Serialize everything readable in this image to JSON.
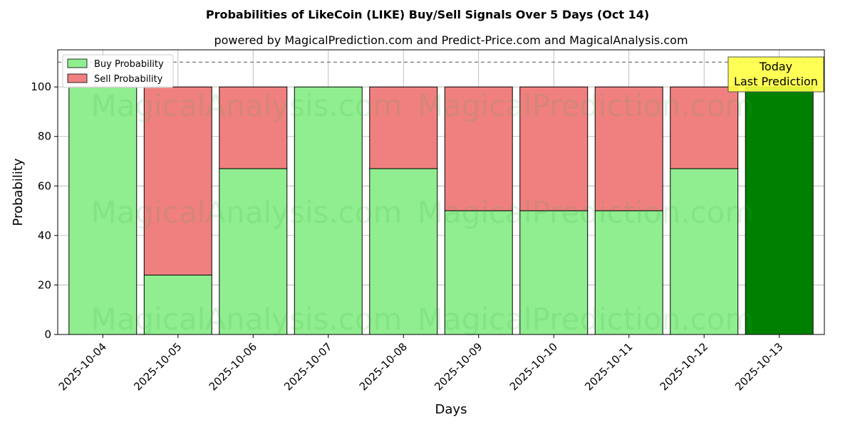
{
  "chart_data": {
    "type": "bar",
    "stacked": true,
    "title": "Probabilities of LikeCoin (LIKE) Buy/Sell Signals Over 5 Days (Oct 14)",
    "subtitle": "powered by MagicalPrediction.com and Predict-Price.com and MagicalAnalysis.com",
    "xlabel": "Days",
    "ylabel": "Probability",
    "ylim": [
      0,
      115
    ],
    "yticks": [
      0,
      20,
      40,
      60,
      80,
      100
    ],
    "grid": true,
    "legend_position": "top-left",
    "reference_line": 110,
    "categories": [
      "2025-10-04",
      "2025-10-05",
      "2025-10-06",
      "2025-10-07",
      "2025-10-08",
      "2025-10-09",
      "2025-10-10",
      "2025-10-11",
      "2025-10-12",
      "2025-10-13"
    ],
    "series": [
      {
        "name": "Buy Probability",
        "color": "#90ee90",
        "values": [
          100,
          24,
          67,
          100,
          67,
          50,
          50,
          50,
          67,
          100
        ]
      },
      {
        "name": "Sell Probability",
        "color": "#f08080",
        "values": [
          0,
          76,
          33,
          0,
          33,
          50,
          50,
          50,
          33,
          0
        ]
      }
    ],
    "highlight": {
      "category": "2025-10-13",
      "color": "#008000"
    },
    "annotation": {
      "line1": "Today",
      "line2": "Last Prediction",
      "background": "#ffff44"
    },
    "watermarks": [
      "MagicalAnalysis.com",
      "MagicalPrediction.com"
    ]
  }
}
